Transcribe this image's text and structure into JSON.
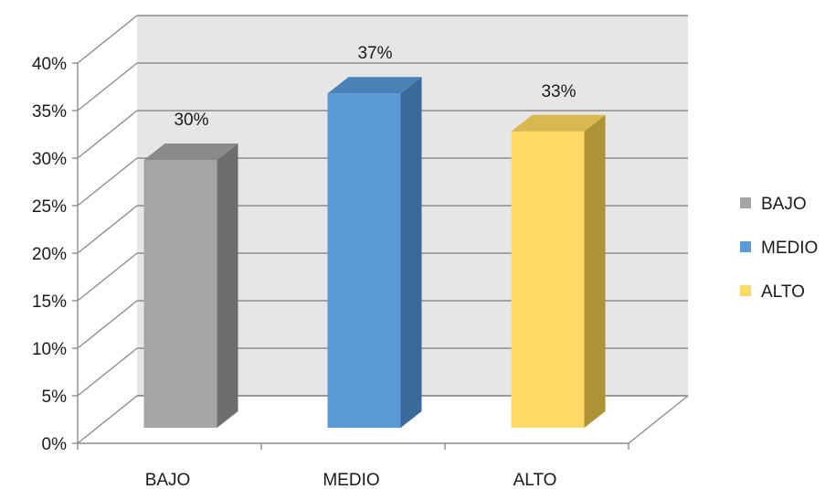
{
  "chart_data": {
    "type": "bar",
    "style": "3d-column",
    "categories": [
      "BAJO",
      "MEDIO",
      "ALTO"
    ],
    "values": [
      30,
      37,
      33
    ],
    "data_labels": [
      "30%",
      "37%",
      "33%"
    ],
    "colors": [
      "#a5a5a5",
      "#5b9bd5",
      "#ffd966"
    ],
    "side_colors": [
      "#6e6e6e",
      "#3a6a9a",
      "#ad9336"
    ],
    "top_colors": [
      "#8a8a8a",
      "#4a82b8",
      "#d9b84f"
    ],
    "ylim": [
      0,
      40
    ],
    "y_ticks": [
      0,
      5,
      10,
      15,
      20,
      25,
      30,
      35,
      40
    ],
    "y_tick_labels": [
      "0%",
      "5%",
      "10%",
      "15%",
      "20%",
      "25%",
      "30%",
      "35%",
      "40%"
    ],
    "title": "",
    "xlabel": "",
    "ylabel": "",
    "grid": true,
    "wall_color": "#e6e6e6",
    "legend": {
      "position": "right",
      "entries": [
        {
          "label": "BAJO",
          "color": "#a5a5a5"
        },
        {
          "label": "MEDIO",
          "color": "#5b9bd5"
        },
        {
          "label": "ALTO",
          "color": "#ffd966"
        }
      ]
    }
  }
}
